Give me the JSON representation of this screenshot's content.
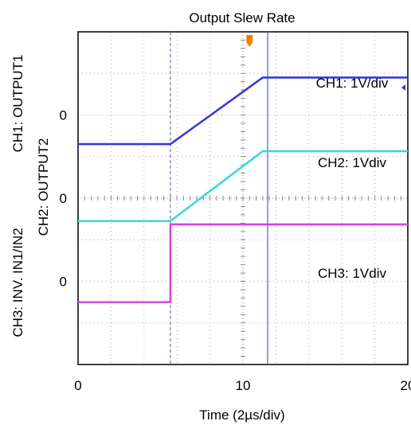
{
  "chart_data": {
    "type": "line",
    "title": "Output Slew Rate",
    "xlabel": "Time (2µs/div)",
    "x_ticks": [
      "0",
      "10",
      "20"
    ],
    "xlim": [
      0,
      20
    ],
    "ylim": [
      0,
      8
    ],
    "grid": true,
    "ylabels": [
      "CH1: OUTPUT1",
      "CH2: OUTPUT2",
      "CH3: INV. IN1/IN2"
    ],
    "y_zero_marks": [
      {
        "text": "0",
        "level": 6
      },
      {
        "text": "0",
        "level": 4
      },
      {
        "text": "0",
        "level": 2
      }
    ],
    "annotations": [
      "CH1: 1V/div",
      "CH2: 1Vdiv",
      "CH3: 1Vdiv"
    ],
    "cursor_time": 11.5,
    "series": [
      {
        "color": "#3a3ad8",
        "points": [
          [
            0,
            5.3
          ],
          [
            5.6,
            5.3
          ],
          [
            11.2,
            6.9
          ],
          [
            20,
            6.9
          ]
        ]
      },
      {
        "color": "#3ad8d8",
        "points": [
          [
            0,
            3.45
          ],
          [
            5.6,
            3.45
          ],
          [
            11.2,
            5.13
          ],
          [
            20,
            5.13
          ]
        ]
      },
      {
        "color": "#e040e0",
        "points": [
          [
            0,
            1.5
          ],
          [
            5.6,
            1.5
          ],
          [
            5.6,
            3.37
          ],
          [
            20,
            3.37
          ]
        ]
      }
    ],
    "colors": {
      "grid": "#aaaaaa",
      "trigger_dash": "#5555aa",
      "cursor": "#5555dd",
      "marker": "#f08000",
      "frame": "#000000"
    }
  }
}
